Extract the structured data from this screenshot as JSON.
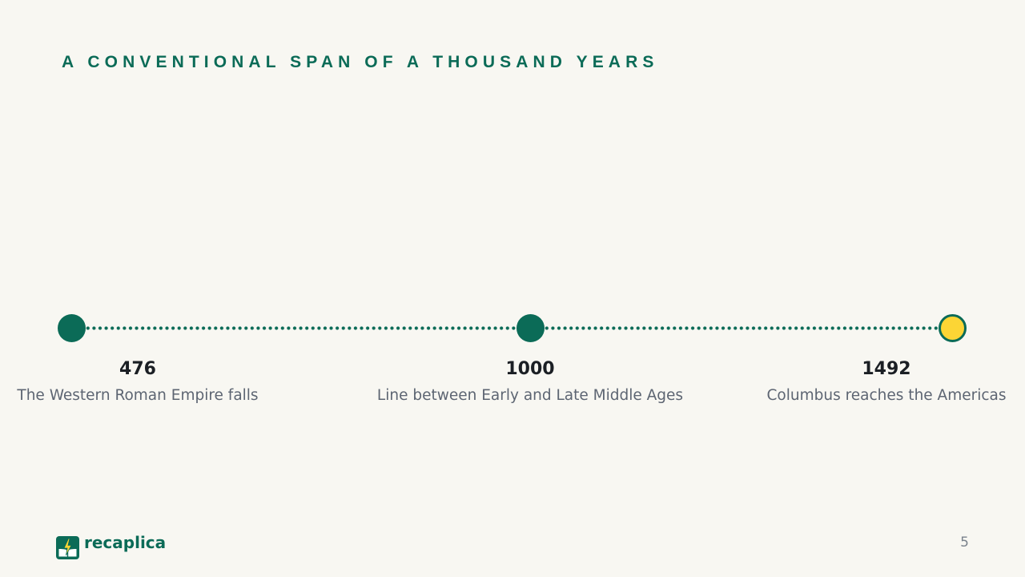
{
  "slide": {
    "title": "A CONVENTIONAL SPAN OF A THOUSAND YEARS",
    "page_number": "5"
  },
  "timeline": {
    "events": [
      {
        "year": "476",
        "description": "The Western Roman Empire falls",
        "marker_color": "#0b6b57"
      },
      {
        "year": "1000",
        "description": "Line between Early and Late Middle Ages",
        "marker_color": "#0b6b57"
      },
      {
        "year": "1492",
        "description": "Columbus reaches the Americas",
        "marker_color": "#fcd535"
      }
    ]
  },
  "brand": {
    "name": "recaplica",
    "icon": "book-lightning-logo-icon"
  },
  "colors": {
    "accent": "#0b6b57",
    "highlight": "#fcd535",
    "background": "#f8f7f2",
    "text": "#1b1f24",
    "muted_text": "#5d6572"
  }
}
